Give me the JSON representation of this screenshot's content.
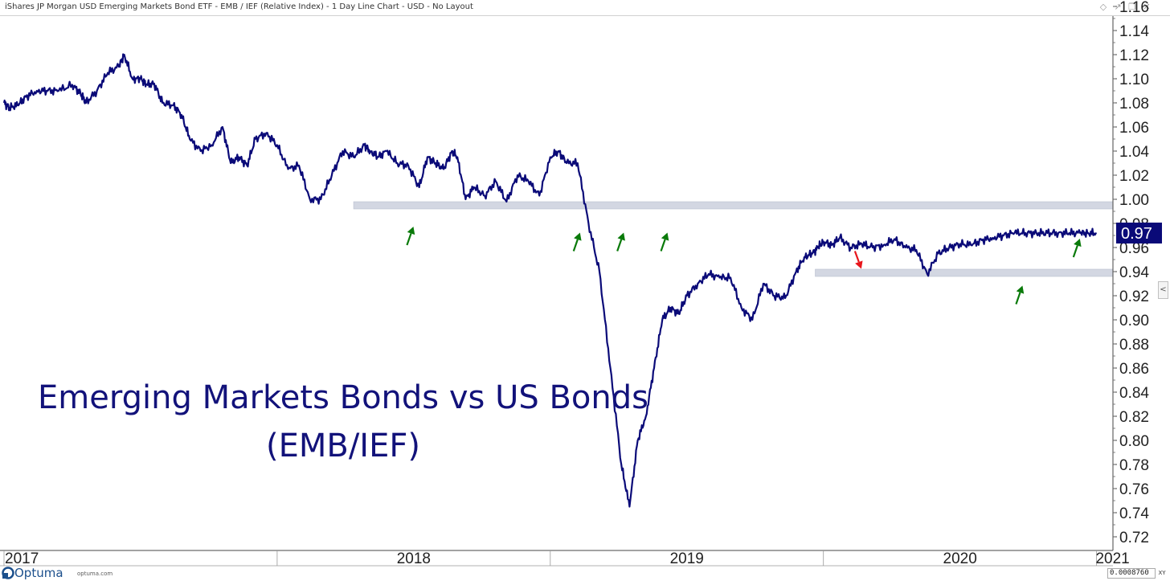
{
  "window": {
    "title": "iShares JP Morgan USD Emerging Markets Bond ETF - EMB / IEF (Relative Index) - 1 Day Line Chart - USD - No Layout",
    "icons": [
      "diamond-icon",
      "pin-icon",
      "restore-icon",
      "close-icon"
    ]
  },
  "chart_data": {
    "type": "line",
    "title": "Emerging Markets Bonds vs US Bonds",
    "subtitle": "(EMB/IEF)",
    "xlabel": "",
    "ylabel": "",
    "xlim": [
      2017.0,
      2021.06
    ],
    "ylim": [
      0.715,
      1.165
    ],
    "y_ticks": [
      "0.72",
      "0.74",
      "0.76",
      "0.78",
      "0.80",
      "0.82",
      "0.84",
      "0.86",
      "0.88",
      "0.90",
      "0.92",
      "0.94",
      "0.96",
      "0.98",
      "1.00",
      "1.02",
      "1.04",
      "1.06",
      "1.08",
      "1.10",
      "1.12",
      "1.14",
      "1.16"
    ],
    "x_ticks": [
      {
        "label": "2017",
        "value": 2017.0
      },
      {
        "label": "2018",
        "value": 2018.0
      },
      {
        "label": "2019",
        "value": 2019.0
      },
      {
        "label": "2020",
        "value": 2020.0
      },
      {
        "label": "2021",
        "value": 2021.0
      }
    ],
    "grid": false,
    "line_color": "#0a0a78",
    "last_value_label": "0.97",
    "series": [
      {
        "x": [
          2017.0,
          2017.02,
          2017.05,
          2017.08,
          2017.12,
          2017.16,
          2017.2,
          2017.25,
          2017.28,
          2017.3,
          2017.34,
          2017.38,
          2017.42,
          2017.44,
          2017.47,
          2017.5,
          2017.52,
          2017.55,
          2017.58,
          2017.62,
          2017.65,
          2017.68,
          2017.72,
          2017.76,
          2017.8,
          2017.83,
          2017.86,
          2017.89,
          2017.92,
          2017.96,
          2018.0,
          2018.04,
          2018.08,
          2018.12,
          2018.16,
          2018.2,
          2018.24,
          2018.28,
          2018.32,
          2018.34,
          2018.37,
          2018.4,
          2018.44,
          2018.48,
          2018.52,
          2018.55,
          2018.58,
          2018.61,
          2018.64,
          2018.66,
          2018.69,
          2018.72,
          2018.76,
          2018.8,
          2018.84,
          2018.88,
          2018.92,
          2018.96,
          2019.0,
          2019.03,
          2019.06,
          2019.1,
          2019.14,
          2019.18,
          2019.22,
          2019.26,
          2019.29,
          2019.32,
          2019.35,
          2019.38,
          2019.41,
          2019.44,
          2019.47,
          2019.5,
          2019.54,
          2019.58,
          2019.62,
          2019.66,
          2019.7,
          2019.74,
          2019.78,
          2019.82,
          2019.86,
          2019.9,
          2019.93,
          2019.96,
          2019.98,
          2020.0,
          2020.03,
          2020.06,
          2020.1,
          2020.14,
          2020.18,
          2020.22,
          2020.26,
          2020.3,
          2020.34,
          2020.38,
          2020.42,
          2020.46,
          2020.5,
          2020.54,
          2020.58,
          2020.62,
          2020.66,
          2020.7,
          2020.74,
          2020.78,
          2020.82,
          2020.86,
          2020.9,
          2020.94,
          2020.97,
          2021.0
        ],
        "y": [
          1.08,
          1.076,
          1.078,
          1.085,
          1.09,
          1.09,
          1.09,
          1.095,
          1.088,
          1.08,
          1.09,
          1.105,
          1.11,
          1.12,
          1.1,
          1.1,
          1.095,
          1.096,
          1.08,
          1.078,
          1.07,
          1.05,
          1.04,
          1.045,
          1.06,
          1.03,
          1.035,
          1.028,
          1.05,
          1.055,
          1.045,
          1.025,
          1.028,
          1.0,
          1.0,
          1.02,
          1.04,
          1.035,
          1.045,
          1.04,
          1.035,
          1.04,
          1.03,
          1.028,
          1.01,
          1.035,
          1.03,
          1.025,
          1.04,
          1.035,
          1.0,
          1.01,
          1.003,
          1.015,
          0.998,
          1.02,
          1.015,
          1.003,
          1.035,
          1.04,
          1.03,
          1.03,
          0.98,
          0.94,
          0.86,
          0.78,
          0.745,
          0.8,
          0.82,
          0.86,
          0.9,
          0.91,
          0.905,
          0.92,
          0.93,
          0.938,
          0.935,
          0.935,
          0.91,
          0.9,
          0.93,
          0.92,
          0.918,
          0.94,
          0.952,
          0.955,
          0.96,
          0.965,
          0.962,
          0.968,
          0.96,
          0.963,
          0.96,
          0.962,
          0.967,
          0.96,
          0.958,
          0.938,
          0.955,
          0.96,
          0.963,
          0.962,
          0.966,
          0.968,
          0.97,
          0.972,
          0.972,
          0.972,
          0.972,
          0.972,
          0.972,
          0.972,
          0.972,
          0.972
        ]
      }
    ],
    "support_bands": [
      {
        "x_start": 2018.28,
        "x_end": 2021.06,
        "y": 0.995
      },
      {
        "x_start": 2019.97,
        "x_end": 2021.06,
        "y": 0.939
      }
    ],
    "arrows": [
      {
        "color": "#0a7a0a",
        "direction": "up",
        "x": 2018.49,
        "y": 0.97
      },
      {
        "color": "#0a7a0a",
        "direction": "up",
        "x": 2019.1,
        "y": 0.965
      },
      {
        "color": "#0a7a0a",
        "direction": "up",
        "x": 2019.26,
        "y": 0.965
      },
      {
        "color": "#0a7a0a",
        "direction": "up",
        "x": 2019.42,
        "y": 0.965
      },
      {
        "color": "#e8151b",
        "direction": "down",
        "x": 2020.13,
        "y": 0.949
      },
      {
        "color": "#0a7a0a",
        "direction": "up",
        "x": 2020.72,
        "y": 0.921
      },
      {
        "color": "#0a7a0a",
        "direction": "up",
        "x": 2020.93,
        "y": 0.96
      }
    ]
  },
  "footer": {
    "logo_text": "Optuma",
    "logo_url": "optuma.com",
    "readout_value": "0.0008760",
    "xy_label": "XY",
    "scroll_glyph": "<"
  }
}
